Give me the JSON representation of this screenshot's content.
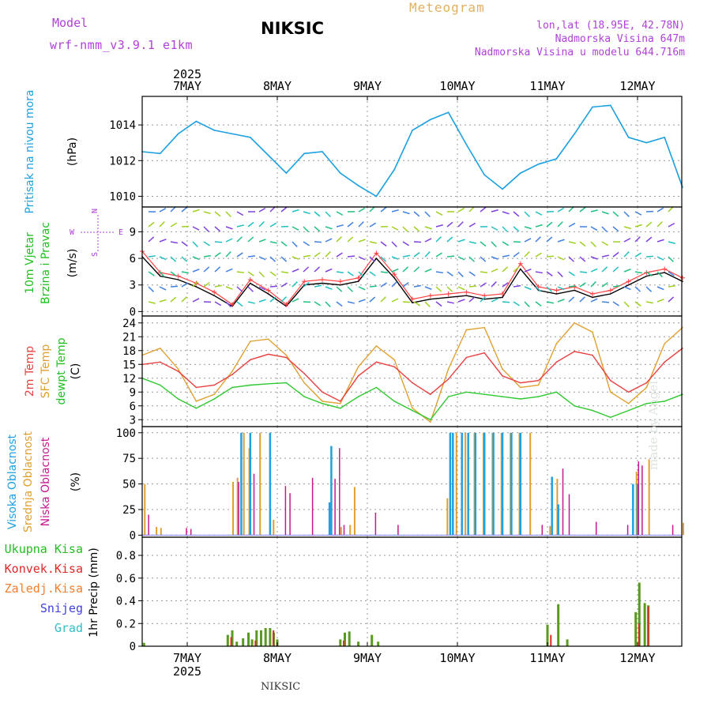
{
  "header": {
    "model_label": "Model",
    "model_name": "wrf-nmm_v3.9.1  e1km",
    "station": "NIKSIC",
    "title": "Meteogram",
    "coords": "lon,lat (18.95E, 42.78N)",
    "altitude": "Nadmorska Visina 647m",
    "model_altitude": "Nadmorska Visina u modelu 644.716m"
  },
  "footer": {
    "station": "NIKSIC",
    "watermark": "made by Angel"
  },
  "colors": {
    "pressure": "#1ca0e0",
    "wind_speed": "#000000",
    "gust": "#ff4040",
    "temp2m": "#e84040",
    "sfc_temp": "#e0a030",
    "dewpoint": "#30c830",
    "cloud_high": "#20a0e0",
    "cloud_mid": "#e0a030",
    "cloud_low": "#c81890",
    "precip_total": "#5a9a20",
    "precip_conv": "#e02828",
    "grid": "#999999"
  },
  "chart_data": [
    {
      "type": "line",
      "panel": "pressure",
      "ylabel": [
        "Pritisak na nivou mora",
        "(hPa)"
      ],
      "yticks": [
        1010,
        1012,
        1014
      ],
      "ylim": [
        1009.4,
        1015.6
      ],
      "x_top_year": "2025",
      "x_top_ticks": [
        "7MAY",
        "8MAY",
        "9MAY",
        "10MAY",
        "11MAY",
        "12MAY"
      ],
      "x": [
        0.0,
        0.2,
        0.4,
        0.6,
        0.8,
        1.0,
        1.2,
        1.4,
        1.6,
        1.8,
        2.0,
        2.2,
        2.4,
        2.6,
        2.8,
        3.0,
        3.2,
        3.4,
        3.6,
        3.8,
        4.0,
        4.2,
        4.4,
        4.6,
        4.8,
        5.0,
        5.2,
        5.4,
        5.6,
        5.8,
        6.0
      ],
      "series": [
        {
          "values": [
            1012.5,
            1012.4,
            1013.5,
            1014.2,
            1013.7,
            1013.5,
            1013.3,
            1012.3,
            1011.3,
            1012.4,
            1012.5,
            1011.3,
            1010.6,
            1010.0,
            1011.5,
            1013.7,
            1014.3,
            1014.7,
            1012.9,
            1011.2,
            1010.4,
            1011.3,
            1011.8,
            1012.1,
            1013.5,
            1015.0,
            1015.1,
            1013.3,
            1013.0,
            1013.3,
            1010.5
          ]
        }
      ]
    },
    {
      "type": "line",
      "panel": "wind",
      "ylabel": [
        "10m Vjetar",
        "Brzina i Pravac",
        "(m/s)"
      ],
      "compass": [
        "N",
        "W",
        "E",
        "S"
      ],
      "yticks": [
        0,
        3,
        6,
        9
      ],
      "ylim": [
        -0.5,
        11.8
      ],
      "x": [
        0.0,
        0.2,
        0.4,
        0.6,
        0.8,
        1.0,
        1.2,
        1.4,
        1.6,
        1.8,
        2.0,
        2.2,
        2.4,
        2.6,
        2.8,
        3.0,
        3.2,
        3.4,
        3.6,
        3.8,
        4.0,
        4.2,
        4.4,
        4.6,
        4.8,
        5.0,
        5.2,
        5.4,
        5.6,
        5.8,
        6.0
      ],
      "series": [
        {
          "values": [
            6.2,
            4.0,
            3.6,
            2.8,
            1.8,
            0.6,
            3.2,
            2.0,
            0.6,
            3.0,
            3.2,
            3.0,
            3.4,
            6.0,
            3.8,
            1.0,
            1.4,
            1.6,
            1.8,
            1.4,
            1.6,
            4.8,
            2.4,
            2.0,
            2.4,
            1.6,
            2.0,
            3.0,
            4.0,
            4.4,
            3.4
          ]
        },
        {
          "values": [
            6.8,
            4.4,
            4.0,
            3.2,
            2.2,
            0.8,
            3.6,
            2.4,
            0.8,
            3.4,
            3.6,
            3.4,
            3.8,
            6.6,
            4.2,
            1.4,
            1.8,
            2.0,
            2.2,
            1.8,
            2.0,
            5.4,
            2.8,
            2.4,
            2.8,
            2.0,
            2.4,
            3.4,
            4.4,
            4.8,
            3.8
          ]
        }
      ]
    },
    {
      "type": "line",
      "panel": "temperature",
      "ylabel": [
        "2m Temp",
        "SFC Temp",
        "dewpt Temp",
        "(C)"
      ],
      "yticks": [
        3,
        6,
        9,
        12,
        15,
        18,
        21,
        24
      ],
      "ylim": [
        1.5,
        25.5
      ],
      "x": [
        0.0,
        0.2,
        0.4,
        0.6,
        0.8,
        1.0,
        1.2,
        1.4,
        1.6,
        1.8,
        2.0,
        2.2,
        2.4,
        2.6,
        2.8,
        3.0,
        3.2,
        3.4,
        3.6,
        3.8,
        4.0,
        4.2,
        4.4,
        4.6,
        4.8,
        5.0,
        5.2,
        5.4,
        5.6,
        5.8,
        6.0
      ],
      "series": [
        {
          "values": [
            15.0,
            15.5,
            13.5,
            10.0,
            10.5,
            12.8,
            16.0,
            17.2,
            16.5,
            13.0,
            9.0,
            7.0,
            12.5,
            15.5,
            14.5,
            11.0,
            8.5,
            11.8,
            16.5,
            17.5,
            12.5,
            11.0,
            11.5,
            15.5,
            17.8,
            17.0,
            11.5,
            9.0,
            11.0,
            15.5,
            18.5
          ]
        },
        {
          "values": [
            17.0,
            18.5,
            14.0,
            7.0,
            8.5,
            13.5,
            20.0,
            20.5,
            17.0,
            11.0,
            7.0,
            6.5,
            14.5,
            19.0,
            16.0,
            5.5,
            2.5,
            14.0,
            22.5,
            23.0,
            14.0,
            10.0,
            10.5,
            19.5,
            24.0,
            22.0,
            9.0,
            6.5,
            10.0,
            19.5,
            23.0
          ]
        },
        {
          "values": [
            12.0,
            10.5,
            7.5,
            5.5,
            7.5,
            10.0,
            10.5,
            10.8,
            11.0,
            8.0,
            6.5,
            5.5,
            8.0,
            10.0,
            7.0,
            5.0,
            3.0,
            8.0,
            9.0,
            8.5,
            8.0,
            7.5,
            8.0,
            9.0,
            6.0,
            5.0,
            3.5,
            5.0,
            6.5,
            7.0,
            8.5
          ]
        }
      ]
    },
    {
      "type": "bar",
      "panel": "clouds",
      "ylabel": [
        "Visoka Oblacnost",
        "Srednja Oblacnost",
        "Niska Oblacnost",
        "(%)"
      ],
      "yticks": [
        0,
        25,
        50,
        75,
        100
      ],
      "ylim": [
        -2,
        106
      ],
      "series": [
        {
          "name": "Visoka Oblacnost",
          "x": [
            1.1,
            1.2,
            1.42,
            2.08,
            2.1,
            3.42,
            3.45,
            3.55,
            3.62,
            3.7,
            3.8,
            3.9,
            4.0,
            4.1,
            4.2,
            4.55,
            4.62,
            5.45,
            5.5
          ],
          "values": [
            100,
            100,
            100,
            32,
            87,
            100,
            100,
            100,
            100,
            100,
            100,
            100,
            100,
            100,
            100,
            57,
            30,
            50,
            50
          ]
        },
        {
          "name": "Srednja Oblacnost",
          "x": [
            0.02,
            0.15,
            0.2,
            1.0,
            1.05,
            1.12,
            1.18,
            1.3,
            1.45,
            2.2,
            2.3,
            2.35,
            3.38,
            3.48,
            3.58,
            3.68,
            3.78,
            3.88,
            3.98,
            4.08,
            4.18,
            4.3,
            4.52,
            4.6,
            5.48,
            5.62,
            6.0
          ],
          "values": [
            50,
            8,
            7,
            52,
            56,
            100,
            85,
            100,
            15,
            8,
            10,
            47,
            36,
            100,
            100,
            100,
            100,
            100,
            100,
            100,
            100,
            100,
            9,
            55,
            62,
            74,
            12
          ]
        },
        {
          "name": "Niska Oblacnost",
          "x": [
            0.08,
            0.5,
            0.55,
            1.08,
            1.25,
            1.6,
            1.65,
            1.9,
            2.15,
            2.2,
            2.25,
            2.6,
            2.85,
            4.45,
            4.68,
            4.75,
            5.05,
            5.4,
            5.52,
            5.56,
            5.9
          ],
          "values": [
            20,
            7,
            6,
            52,
            60,
            48,
            41,
            56,
            55,
            85,
            10,
            22,
            10,
            10,
            65,
            40,
            13,
            10,
            72,
            68,
            10
          ]
        }
      ]
    },
    {
      "type": "bar",
      "panel": "precipitation",
      "ylabel": [
        "Ukupna Kisa",
        "Konvek.Kisa",
        "Zaledj.Kisa",
        "Snijeg",
        "Grad",
        "1hr Precip (mm)"
      ],
      "yticks": [
        0,
        0.2,
        0.4,
        0.6,
        0.8
      ],
      "ylim": [
        0,
        0.96
      ],
      "x_bottom_ticks": [
        "7MAY",
        "8MAY",
        "9MAY",
        "10MAY",
        "11MAY",
        "12MAY"
      ],
      "x_bottom_year": "2025",
      "series": [
        {
          "name": "Ukupna Kisa",
          "x": [
            0.02,
            0.95,
            1.0,
            1.05,
            1.12,
            1.18,
            1.22,
            1.27,
            1.32,
            1.37,
            1.42,
            1.46,
            1.5,
            2.2,
            2.25,
            2.3,
            2.4,
            2.55,
            2.62,
            4.5,
            4.62,
            4.72,
            5.48,
            5.52,
            5.58,
            5.62
          ],
          "values": [
            0.03,
            0.1,
            0.14,
            0.04,
            0.07,
            0.12,
            0.06,
            0.14,
            0.14,
            0.16,
            0.16,
            0.12,
            0.06,
            0.06,
            0.12,
            0.13,
            0.04,
            0.1,
            0.04,
            0.19,
            0.37,
            0.06,
            0.3,
            0.56,
            0.38,
            0.36
          ]
        },
        {
          "name": "Konvek.Kisa",
          "x": [
            0.97,
            1.24,
            1.44,
            2.22,
            4.52,
            5.5,
            5.6
          ],
          "values": [
            0.08,
            0.05,
            0.14,
            0.05,
            0.1,
            0.2,
            0.35
          ]
        }
      ]
    }
  ]
}
